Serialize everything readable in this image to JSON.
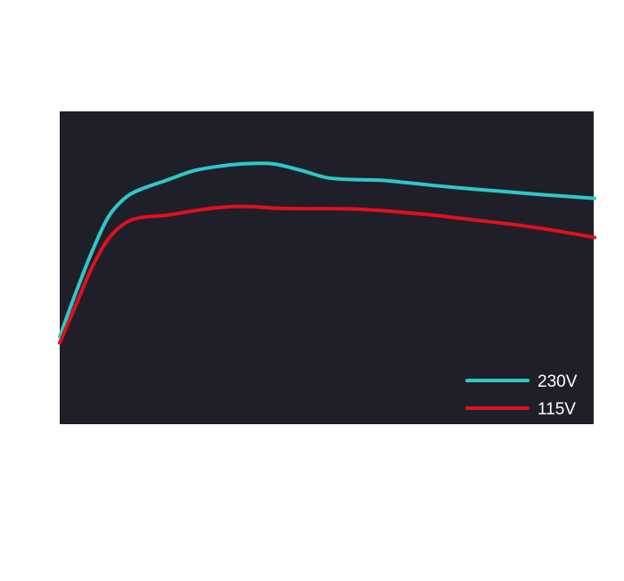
{
  "chart_data": {
    "type": "line",
    "title": "",
    "xlabel": "",
    "ylabel": "",
    "x_range": [
      0,
      100
    ],
    "y_range": [
      0,
      100
    ],
    "grid": false,
    "background": "#1f1f29",
    "legend_position": "bottom-right",
    "series": [
      {
        "name": "230V",
        "color": "#2ec8c8",
        "x": [
          0,
          3,
          6,
          9,
          12,
          15,
          20,
          25,
          30,
          35,
          40,
          45,
          50,
          55,
          60,
          65,
          70,
          75,
          80,
          85,
          90,
          95,
          100
        ],
        "y": [
          28,
          42,
          55,
          66,
          72,
          75,
          78,
          81,
          82.5,
          83.3,
          83.2,
          81.2,
          78.8,
          78.2,
          78,
          77.2,
          76.3,
          75.5,
          74.8,
          74.1,
          73.4,
          72.8,
          72.2
        ]
      },
      {
        "name": "115V",
        "color": "#e0101d",
        "x": [
          0,
          3,
          6,
          9,
          12,
          15,
          20,
          25,
          30,
          35,
          40,
          45,
          50,
          55,
          60,
          65,
          70,
          75,
          80,
          85,
          90,
          95,
          100
        ],
        "y": [
          26,
          38,
          50,
          59,
          64,
          66,
          66.8,
          68.2,
          69.3,
          69.6,
          69.1,
          68.9,
          68.9,
          68.8,
          68.3,
          67.6,
          66.8,
          65.8,
          64.8,
          63.8,
          62.6,
          61.2,
          59.7
        ]
      }
    ]
  }
}
